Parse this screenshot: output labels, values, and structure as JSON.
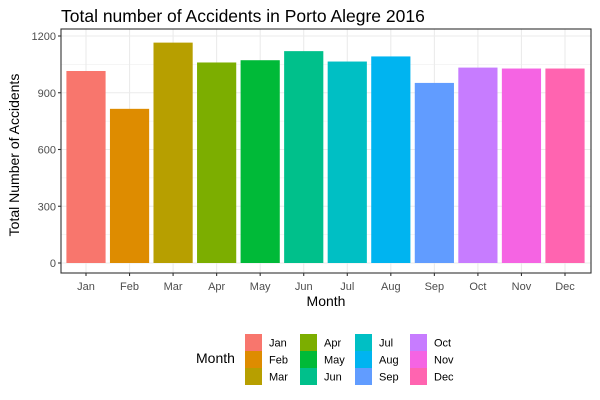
{
  "chart_data": {
    "type": "bar",
    "title": "Total number of Accidents in Porto Alegre 2016",
    "xlabel": "Month",
    "ylabel": "Total Number of Accidents",
    "categories": [
      "Jan",
      "Feb",
      "Mar",
      "Apr",
      "May",
      "Jun",
      "Jul",
      "Aug",
      "Sep",
      "Oct",
      "Nov",
      "Dec"
    ],
    "values": [
      1015,
      815,
      1165,
      1060,
      1072,
      1120,
      1065,
      1092,
      952,
      1033,
      1028,
      1028
    ],
    "colors": [
      "#F8766D",
      "#DE8C00",
      "#B79F00",
      "#7CAE00",
      "#00BA38",
      "#00C08B",
      "#00BFC4",
      "#00B4F0",
      "#619CFF",
      "#C77CFF",
      "#F564E3",
      "#FF64B0"
    ],
    "ylim": [
      0,
      1200
    ],
    "yticks": [
      0,
      300,
      600,
      900,
      1200
    ],
    "grid": true,
    "legend": {
      "title": "Month",
      "position": "bottom",
      "columns": 4
    }
  }
}
